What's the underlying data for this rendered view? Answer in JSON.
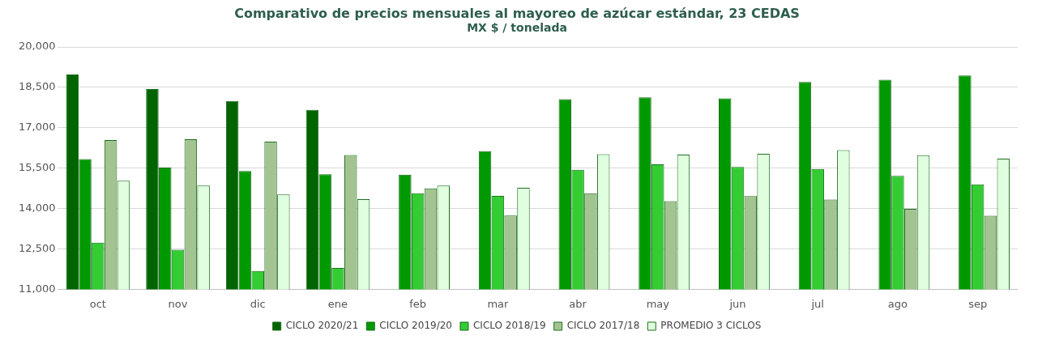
{
  "chart_data": {
    "type": "bar",
    "title": "Comparativo de precios mensuales al mayoreo de azúcar estándar, 23 CEDAS",
    "subtitle": "MX $ / tonelada",
    "categories": [
      "oct",
      "nov",
      "dic",
      "ene",
      "feb",
      "mar",
      "abr",
      "may",
      "jun",
      "jul",
      "ago",
      "sep"
    ],
    "series": [
      {
        "name": "CICLO 2020/21",
        "color": "#006400",
        "values": [
          18980,
          18440,
          17990,
          17660,
          null,
          null,
          null,
          null,
          null,
          null,
          null,
          null
        ]
      },
      {
        "name": "CICLO 2019/20",
        "color": "#009900",
        "values": [
          15840,
          15520,
          15390,
          15270,
          15260,
          16130,
          18060,
          18130,
          18090,
          18700,
          18780,
          18940
        ]
      },
      {
        "name": "CICLO 2018/19",
        "color": "#33cc33",
        "values": [
          12730,
          12470,
          11680,
          11790,
          14570,
          14470,
          15440,
          15640,
          15540,
          15470,
          15210,
          14900
        ]
      },
      {
        "name": "CICLO 2017/18",
        "color": "#a3c491",
        "values": [
          16540,
          16570,
          16480,
          15990,
          14750,
          13740,
          14570,
          14270,
          14460,
          14330,
          13990,
          13730
        ]
      },
      {
        "name": "PROMEDIO 3 CICLOS",
        "color": "#dfffdf",
        "values": [
          15030,
          14850,
          14520,
          14350,
          14850,
          14770,
          16020,
          16000,
          16030,
          16170,
          15980,
          15850
        ]
      }
    ],
    "ylim": [
      11000,
      20000
    ],
    "yticks": [
      {
        "value": 11000,
        "label": "11,000"
      },
      {
        "value": 12500,
        "label": "12,500"
      },
      {
        "value": 14000,
        "label": "14,000"
      },
      {
        "value": 15500,
        "label": "15,500"
      },
      {
        "value": 17000,
        "label": "17,000"
      },
      {
        "value": 18500,
        "label": "18,500"
      },
      {
        "value": 20000,
        "label": "20,000"
      }
    ],
    "grid": "y",
    "legend": "bottom"
  }
}
